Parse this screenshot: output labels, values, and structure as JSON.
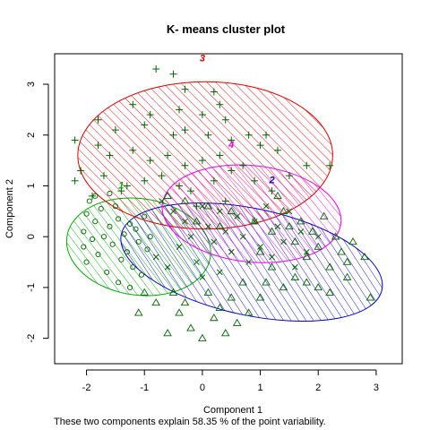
{
  "chart_data": {
    "type": "scatter",
    "title": "K- means cluster plot",
    "xlabel": "Component 1",
    "ylabel": "Component 2",
    "subtitle": "These two components explain 58.35 % of the point variability.",
    "xlim": [
      -2.55,
      3.45
    ],
    "ylim": [
      -2.5,
      3.6
    ],
    "x_ticks": [
      -2,
      -1,
      0,
      1,
      2,
      3
    ],
    "y_ticks": [
      -2,
      -1,
      0,
      1,
      2,
      3
    ],
    "grid": false,
    "legend": "none",
    "point_color": "#006400",
    "clusters": [
      {
        "label": "1",
        "color": "#00aa00",
        "ellipse": {
          "cx": -1.1,
          "cy": -0.2,
          "rx": 1.25,
          "ry": 0.95,
          "angle_deg": -8
        },
        "label_pos": [
          -1.4,
          0.95
        ],
        "marker": "circle",
        "points": [
          [
            -2.05,
            0.1
          ],
          [
            -2.05,
            -0.2
          ],
          [
            -2.0,
            0.45
          ],
          [
            -2.0,
            -0.5
          ],
          [
            -1.95,
            0.7
          ],
          [
            -1.9,
            -0.05
          ],
          [
            -1.85,
            0.3
          ],
          [
            -1.8,
            -0.35
          ],
          [
            -1.75,
            0.55
          ],
          [
            -1.7,
            0.0
          ],
          [
            -1.65,
            -0.7
          ],
          [
            -1.6,
            0.2
          ],
          [
            -1.55,
            -0.15
          ],
          [
            -1.5,
            0.6
          ],
          [
            -1.45,
            0.35
          ],
          [
            -1.4,
            -0.45
          ],
          [
            -1.35,
            0.05
          ],
          [
            -1.3,
            -0.3
          ],
          [
            -1.25,
            0.25
          ],
          [
            -1.2,
            -0.6
          ],
          [
            -1.15,
            0.15
          ],
          [
            -1.1,
            -0.1
          ],
          [
            -1.05,
            -0.75
          ],
          [
            -1.0,
            0.4
          ],
          [
            -0.95,
            -0.25
          ],
          [
            -1.6,
            0.85
          ],
          [
            -1.85,
            0.8
          ],
          [
            -1.45,
            -0.9
          ],
          [
            -1.25,
            -1.0
          ],
          [
            -0.9,
            0.0
          ]
        ]
      },
      {
        "label": "2",
        "color": "#0000cc",
        "ellipse": {
          "cx": 0.85,
          "cy": -0.5,
          "rx": 2.3,
          "ry": 1.05,
          "angle_deg": -12
        },
        "label_pos": [
          1.2,
          1.05
        ],
        "marker": "triangle",
        "points": [
          [
            1.3,
            0.8
          ],
          [
            1.4,
            0.5
          ],
          [
            1.5,
            0.2
          ],
          [
            1.6,
            -0.1
          ],
          [
            1.7,
            0.3
          ],
          [
            1.8,
            -0.4
          ],
          [
            1.9,
            0.1
          ],
          [
            2.0,
            -0.2
          ],
          [
            2.1,
            0.4
          ],
          [
            2.2,
            -0.6
          ],
          [
            2.3,
            0.0
          ],
          [
            2.4,
            -0.3
          ],
          [
            2.5,
            -0.8
          ],
          [
            2.6,
            -0.1
          ],
          [
            2.8,
            -0.4
          ],
          [
            2.9,
            -1.2
          ],
          [
            1.2,
            -0.6
          ],
          [
            1.1,
            -0.9
          ],
          [
            1.0,
            -1.2
          ],
          [
            0.8,
            -1.5
          ],
          [
            0.6,
            -1.7
          ],
          [
            0.4,
            -1.9
          ],
          [
            0.2,
            -1.6
          ],
          [
            0.0,
            -2.0
          ],
          [
            -0.2,
            -1.8
          ],
          [
            -0.4,
            -1.5
          ],
          [
            -0.6,
            -1.9
          ],
          [
            -0.8,
            -1.3
          ],
          [
            -1.0,
            -1.1
          ],
          [
            -1.1,
            -1.5
          ],
          [
            -0.5,
            -1.1
          ],
          [
            -0.3,
            -1.3
          ],
          [
            0.1,
            -1.1
          ],
          [
            0.3,
            -1.4
          ],
          [
            0.5,
            -1.2
          ],
          [
            0.7,
            -0.9
          ],
          [
            1.4,
            -1.0
          ],
          [
            1.6,
            -0.8
          ],
          [
            1.8,
            -0.9
          ],
          [
            2.0,
            -1.0
          ],
          [
            2.2,
            -1.1
          ],
          [
            2.5,
            -0.5
          ],
          [
            1.2,
            0.1
          ],
          [
            1.0,
            -0.3
          ],
          [
            0.9,
            0.3
          ],
          [
            0.5,
            0.5
          ],
          [
            0.3,
            0.2
          ],
          [
            0.1,
            0.6
          ],
          [
            -0.1,
            0.3
          ],
          [
            -0.3,
            0.7
          ],
          [
            -0.6,
            0.8
          ]
        ]
      },
      {
        "label": "3",
        "color": "#dd0000",
        "ellipse": {
          "cx": 0.05,
          "cy": 1.6,
          "rx": 2.2,
          "ry": 1.45,
          "angle_deg": 0
        },
        "label_pos": [
          0.0,
          3.45
        ],
        "marker": "plus",
        "points": [
          [
            -0.8,
            3.3
          ],
          [
            -0.5,
            3.2
          ],
          [
            -0.3,
            2.9
          ],
          [
            0.2,
            2.85
          ],
          [
            0.3,
            2.6
          ],
          [
            -1.2,
            2.6
          ],
          [
            -0.9,
            2.4
          ],
          [
            -0.4,
            2.5
          ],
          [
            0.0,
            2.4
          ],
          [
            0.4,
            2.3
          ],
          [
            -1.8,
            2.3
          ],
          [
            -1.5,
            2.1
          ],
          [
            -1.0,
            2.2
          ],
          [
            -0.5,
            2.0
          ],
          [
            -0.3,
            2.1
          ],
          [
            0.1,
            2.0
          ],
          [
            0.5,
            1.9
          ],
          [
            0.8,
            2.0
          ],
          [
            1.0,
            1.8
          ],
          [
            1.1,
            2.0
          ],
          [
            -2.2,
            1.9
          ],
          [
            -1.8,
            1.8
          ],
          [
            -1.6,
            1.6
          ],
          [
            -1.2,
            1.7
          ],
          [
            -0.9,
            1.5
          ],
          [
            -0.6,
            1.6
          ],
          [
            -0.3,
            1.4
          ],
          [
            0.0,
            1.5
          ],
          [
            0.3,
            1.6
          ],
          [
            0.7,
            1.4
          ],
          [
            1.3,
            1.7
          ],
          [
            1.5,
            1.2
          ],
          [
            1.8,
            1.4
          ],
          [
            2.2,
            1.4
          ],
          [
            -2.1,
            1.3
          ],
          [
            -1.7,
            1.2
          ],
          [
            -1.3,
            1.0
          ],
          [
            -1.0,
            1.1
          ],
          [
            -0.7,
            1.2
          ],
          [
            -0.4,
            1.0
          ],
          [
            -0.2,
            0.9
          ],
          [
            0.2,
            1.1
          ],
          [
            0.5,
            1.3
          ],
          [
            0.9,
            1.1
          ],
          [
            1.2,
            0.9
          ],
          [
            -2.2,
            1.1
          ],
          [
            -1.9,
            0.8
          ],
          [
            -1.4,
            0.9
          ],
          [
            -0.1,
            0.6
          ],
          [
            0.4,
            0.7
          ]
        ]
      },
      {
        "label": "4",
        "color": "#ee00ee",
        "ellipse": {
          "cx": 0.85,
          "cy": 0.45,
          "rx": 1.55,
          "ry": 0.95,
          "angle_deg": -6
        },
        "label_pos": [
          0.5,
          1.75
        ],
        "marker": "cross",
        "points": [
          [
            -0.7,
            0.7
          ],
          [
            -0.5,
            0.5
          ],
          [
            -0.3,
            0.3
          ],
          [
            -0.2,
            0.0
          ],
          [
            0.0,
            0.6
          ],
          [
            0.1,
            0.2
          ],
          [
            0.2,
            -0.1
          ],
          [
            0.3,
            0.5
          ],
          [
            0.4,
            0.1
          ],
          [
            0.5,
            -0.3
          ],
          [
            0.6,
            0.4
          ],
          [
            0.7,
            0.0
          ],
          [
            0.8,
            -0.5
          ],
          [
            0.9,
            0.3
          ],
          [
            1.0,
            -0.2
          ],
          [
            1.1,
            0.6
          ],
          [
            1.2,
            -0.4
          ],
          [
            1.3,
            0.2
          ],
          [
            1.4,
            -0.1
          ],
          [
            1.5,
            0.5
          ],
          [
            1.6,
            -0.6
          ],
          [
            1.7,
            0.1
          ],
          [
            1.8,
            -0.3
          ],
          [
            2.0,
            0.0
          ],
          [
            -0.8,
            -0.4
          ],
          [
            -0.6,
            -0.6
          ],
          [
            -0.4,
            -0.2
          ],
          [
            -0.1,
            -0.5
          ],
          [
            0.0,
            -0.8
          ],
          [
            0.3,
            -0.7
          ]
        ]
      }
    ]
  }
}
